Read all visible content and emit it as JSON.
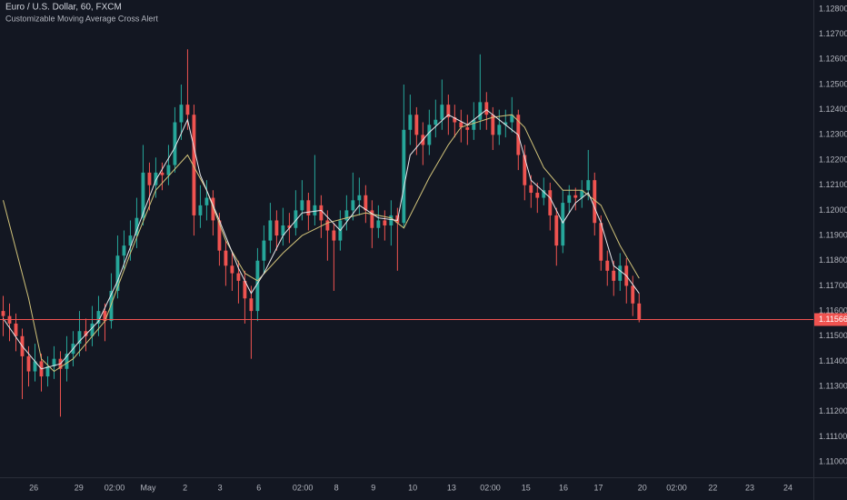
{
  "chart_data": {
    "type": "candlestick",
    "title": "Euro / U.S. Dollar, 60, FXCM",
    "subtitle": "Customizable Moving Average Cross Alert",
    "up_color": "#26a69a",
    "down_color": "#ef5350",
    "xlim": [
      -0.5,
      127.4
    ],
    "ylim": [
      1.1095,
      1.12836
    ],
    "grid": false,
    "yticks": [
      {
        "value": 1.128,
        "label": "1.12800"
      },
      {
        "value": 1.127,
        "label": "1.12700"
      },
      {
        "value": 1.126,
        "label": "1.12600"
      },
      {
        "value": 1.125,
        "label": "1.12500"
      },
      {
        "value": 1.124,
        "label": "1.12400"
      },
      {
        "value": 1.123,
        "label": "1.12300"
      },
      {
        "value": 1.122,
        "label": "1.12200"
      },
      {
        "value": 1.121,
        "label": "1.12100"
      },
      {
        "value": 1.12,
        "label": "1.12000"
      },
      {
        "value": 1.119,
        "label": "1.11900"
      },
      {
        "value": 1.118,
        "label": "1.11800"
      },
      {
        "value": 1.117,
        "label": "1.11700"
      },
      {
        "value": 1.116,
        "label": "1.11600"
      },
      {
        "value": 1.115,
        "label": "1.11500"
      },
      {
        "value": 1.114,
        "label": "1.11400"
      },
      {
        "value": 1.113,
        "label": "1.11300"
      },
      {
        "value": 1.112,
        "label": "1.11200"
      },
      {
        "value": 1.111,
        "label": "1.11100"
      },
      {
        "value": 1.11,
        "label": "1.11000"
      }
    ],
    "xticks": [
      {
        "value": 4.8,
        "label": "26"
      },
      {
        "value": 11.9,
        "label": "29"
      },
      {
        "value": 17.5,
        "label": "02:00"
      },
      {
        "value": 22.8,
        "label": "May"
      },
      {
        "value": 28.6,
        "label": "2"
      },
      {
        "value": 34.1,
        "label": "3"
      },
      {
        "value": 40.2,
        "label": "6"
      },
      {
        "value": 47.1,
        "label": "02:00"
      },
      {
        "value": 52.4,
        "label": "8"
      },
      {
        "value": 58.2,
        "label": "9"
      },
      {
        "value": 64.4,
        "label": "10"
      },
      {
        "value": 70.5,
        "label": "13"
      },
      {
        "value": 76.6,
        "label": "02:00"
      },
      {
        "value": 82.2,
        "label": "15"
      },
      {
        "value": 88.1,
        "label": "16"
      },
      {
        "value": 93.6,
        "label": "17"
      },
      {
        "value": 100.5,
        "label": "20"
      },
      {
        "value": 105.9,
        "label": "02:00"
      },
      {
        "value": 111.6,
        "label": "22"
      },
      {
        "value": 117.4,
        "label": "23"
      },
      {
        "value": 123.4,
        "label": "24"
      }
    ],
    "last_price": {
      "value": 1.11566,
      "label": "1.11566",
      "color": "#ef5350"
    },
    "candles": [
      [
        1.116,
        1.1166,
        1.115,
        1.1158
      ],
      [
        1.1158,
        1.1163,
        1.1148,
        1.1155
      ],
      [
        1.1155,
        1.1159,
        1.1144,
        1.115
      ],
      [
        1.115,
        1.1153,
        1.1125,
        1.1142
      ],
      [
        1.1142,
        1.1146,
        1.113,
        1.1136
      ],
      [
        1.1136,
        1.1147,
        1.1132,
        1.114
      ],
      [
        1.114,
        1.1143,
        1.1128,
        1.1134
      ],
      [
        1.1134,
        1.1142,
        1.113,
        1.1138
      ],
      [
        1.1138,
        1.1146,
        1.1133,
        1.1141
      ],
      [
        1.1141,
        1.1144,
        1.1118,
        1.1137
      ],
      [
        1.1137,
        1.115,
        1.1132,
        1.1143
      ],
      [
        1.1143,
        1.1152,
        1.1138,
        1.1147
      ],
      [
        1.1147,
        1.116,
        1.1142,
        1.1152
      ],
      [
        1.1152,
        1.1157,
        1.1144,
        1.115
      ],
      [
        1.115,
        1.1162,
        1.1146,
        1.1155
      ],
      [
        1.1155,
        1.1166,
        1.115,
        1.116
      ],
      [
        1.116,
        1.1163,
        1.1148,
        1.1156
      ],
      [
        1.1156,
        1.1175,
        1.1153,
        1.1168
      ],
      [
        1.1168,
        1.119,
        1.1165,
        1.1182
      ],
      [
        1.1182,
        1.1192,
        1.1176,
        1.1186
      ],
      [
        1.1186,
        1.1196,
        1.118,
        1.119
      ],
      [
        1.119,
        1.1205,
        1.1185,
        1.1197
      ],
      [
        1.1197,
        1.1226,
        1.1194,
        1.1215
      ],
      [
        1.1215,
        1.1219,
        1.12,
        1.121
      ],
      [
        1.121,
        1.1221,
        1.1205,
        1.1215
      ],
      [
        1.1215,
        1.1219,
        1.1208,
        1.1214
      ],
      [
        1.1214,
        1.1226,
        1.121,
        1.1218
      ],
      [
        1.1218,
        1.1241,
        1.1215,
        1.1235
      ],
      [
        1.1235,
        1.125,
        1.1228,
        1.1242
      ],
      [
        1.1242,
        1.1264,
        1.1232,
        1.1238
      ],
      [
        1.1238,
        1.1242,
        1.119,
        1.1198
      ],
      [
        1.1198,
        1.121,
        1.1193,
        1.1202
      ],
      [
        1.1202,
        1.1212,
        1.1196,
        1.1205
      ],
      [
        1.1205,
        1.1208,
        1.119,
        1.1196
      ],
      [
        1.1196,
        1.1199,
        1.1178,
        1.1184
      ],
      [
        1.1184,
        1.1188,
        1.117,
        1.1178
      ],
      [
        1.1178,
        1.1183,
        1.1168,
        1.1175
      ],
      [
        1.1175,
        1.118,
        1.1163,
        1.1172
      ],
      [
        1.1172,
        1.1176,
        1.1155,
        1.1165
      ],
      [
        1.1165,
        1.117,
        1.1141,
        1.116
      ],
      [
        1.116,
        1.1185,
        1.1156,
        1.118
      ],
      [
        1.118,
        1.1194,
        1.1175,
        1.1188
      ],
      [
        1.1188,
        1.1203,
        1.1183,
        1.1196
      ],
      [
        1.1196,
        1.12,
        1.1184,
        1.119
      ],
      [
        1.119,
        1.1201,
        1.1186,
        1.1194
      ],
      [
        1.1194,
        1.1199,
        1.1187,
        1.1193
      ],
      [
        1.1193,
        1.1208,
        1.119,
        1.12
      ],
      [
        1.12,
        1.1212,
        1.1196,
        1.1204
      ],
      [
        1.1204,
        1.1207,
        1.1192,
        1.1198
      ],
      [
        1.1198,
        1.1222,
        1.1194,
        1.1202
      ],
      [
        1.1202,
        1.1206,
        1.1189,
        1.1196
      ],
      [
        1.1196,
        1.12,
        1.118,
        1.1192
      ],
      [
        1.1192,
        1.1195,
        1.1168,
        1.1188
      ],
      [
        1.1188,
        1.12,
        1.1184,
        1.1196
      ],
      [
        1.1196,
        1.1206,
        1.1192,
        1.12
      ],
      [
        1.12,
        1.1215,
        1.1196,
        1.1204
      ],
      [
        1.1204,
        1.1213,
        1.1198,
        1.1206
      ],
      [
        1.1206,
        1.121,
        1.1195,
        1.12
      ],
      [
        1.12,
        1.1204,
        1.1185,
        1.1193
      ],
      [
        1.1193,
        1.1202,
        1.1189,
        1.1196
      ],
      [
        1.1196,
        1.12,
        1.1188,
        1.1194
      ],
      [
        1.1194,
        1.1204,
        1.1186,
        1.1198
      ],
      [
        1.1198,
        1.1201,
        1.1176,
        1.1195
      ],
      [
        1.1195,
        1.125,
        1.1193,
        1.1232
      ],
      [
        1.1232,
        1.1246,
        1.1226,
        1.1238
      ],
      [
        1.1238,
        1.1241,
        1.1222,
        1.123
      ],
      [
        1.123,
        1.1235,
        1.1218,
        1.1226
      ],
      [
        1.1226,
        1.124,
        1.1222,
        1.1234
      ],
      [
        1.1234,
        1.1244,
        1.1229,
        1.1236
      ],
      [
        1.1236,
        1.1252,
        1.1232,
        1.1242
      ],
      [
        1.1242,
        1.1246,
        1.123,
        1.1237
      ],
      [
        1.1237,
        1.1242,
        1.1229,
        1.1235
      ],
      [
        1.1235,
        1.124,
        1.1227,
        1.1233
      ],
      [
        1.1233,
        1.1238,
        1.1226,
        1.1232
      ],
      [
        1.1232,
        1.1243,
        1.1228,
        1.1236
      ],
      [
        1.1236,
        1.1262,
        1.1232,
        1.1243
      ],
      [
        1.1243,
        1.1247,
        1.1232,
        1.1238
      ],
      [
        1.1238,
        1.1241,
        1.1224,
        1.123
      ],
      [
        1.123,
        1.124,
        1.1226,
        1.1234
      ],
      [
        1.1234,
        1.124,
        1.1229,
        1.1235
      ],
      [
        1.1235,
        1.1245,
        1.1231,
        1.1238
      ],
      [
        1.1238,
        1.124,
        1.1216,
        1.1222
      ],
      [
        1.1222,
        1.1226,
        1.1204,
        1.121
      ],
      [
        1.121,
        1.1214,
        1.1201,
        1.1207
      ],
      [
        1.1207,
        1.1211,
        1.1199,
        1.1205
      ],
      [
        1.1205,
        1.1213,
        1.1202,
        1.1208
      ],
      [
        1.1208,
        1.1211,
        1.1192,
        1.1198
      ],
      [
        1.1198,
        1.1201,
        1.1178,
        1.1186
      ],
      [
        1.1186,
        1.1208,
        1.1183,
        1.1203
      ],
      [
        1.1203,
        1.121,
        1.1199,
        1.1206
      ],
      [
        1.1206,
        1.1209,
        1.12,
        1.1205
      ],
      [
        1.1205,
        1.1212,
        1.1201,
        1.1208
      ],
      [
        1.1208,
        1.1224,
        1.1204,
        1.1212
      ],
      [
        1.1212,
        1.1215,
        1.119,
        1.1195
      ],
      [
        1.1195,
        1.1198,
        1.1176,
        1.118
      ],
      [
        1.118,
        1.1184,
        1.117,
        1.1176
      ],
      [
        1.1176,
        1.118,
        1.1166,
        1.1172
      ],
      [
        1.1172,
        1.1183,
        1.1168,
        1.1178
      ],
      [
        1.1178,
        1.1181,
        1.1163,
        1.117
      ],
      [
        1.117,
        1.1174,
        1.1158,
        1.1163
      ],
      [
        1.1163,
        1.1167,
        1.11555,
        1.11566
      ]
    ],
    "series": [
      {
        "color": "#d1c37a",
        "x": [
          0,
          4,
          6,
          8,
          11,
          16,
          20,
          24,
          29,
          32,
          35,
          38,
          40,
          44,
          47,
          51,
          57,
          61,
          63,
          67,
          70,
          72,
          77,
          80,
          82,
          85,
          88,
          91,
          94,
          97,
          100
        ],
        "values": [
          1.1204,
          1.1165,
          1.1141,
          1.1136,
          1.1141,
          1.1156,
          1.1183,
          1.1208,
          1.1222,
          1.1208,
          1.1188,
          1.1175,
          1.1172,
          1.1183,
          1.119,
          1.1195,
          1.1199,
          1.1197,
          1.1193,
          1.1213,
          1.1226,
          1.1233,
          1.1237,
          1.1238,
          1.1233,
          1.1217,
          1.1208,
          1.1208,
          1.1202,
          1.1186,
          1.1173
        ]
      },
      {
        "color": "#e8e8ec",
        "x": [
          0,
          3,
          6,
          9,
          12,
          15,
          18,
          21,
          24,
          27,
          29,
          31,
          34,
          37,
          39,
          41,
          44,
          47,
          50,
          53,
          56,
          59,
          62,
          64,
          67,
          70,
          73,
          76,
          79,
          81,
          83,
          86,
          88,
          90,
          92,
          94,
          96,
          98,
          100
        ],
        "values": [
          1.1157,
          1.1146,
          1.1137,
          1.1139,
          1.1148,
          1.1156,
          1.1172,
          1.1192,
          1.1212,
          1.1225,
          1.1236,
          1.1214,
          1.1196,
          1.1177,
          1.1167,
          1.1175,
          1.119,
          1.1199,
          1.12,
          1.1192,
          1.1202,
          1.1197,
          1.1196,
          1.1222,
          1.1231,
          1.1238,
          1.1234,
          1.124,
          1.1234,
          1.123,
          1.1212,
          1.1205,
          1.1195,
          1.1203,
          1.1207,
          1.1195,
          1.1178,
          1.1174,
          1.1167
        ]
      }
    ]
  }
}
